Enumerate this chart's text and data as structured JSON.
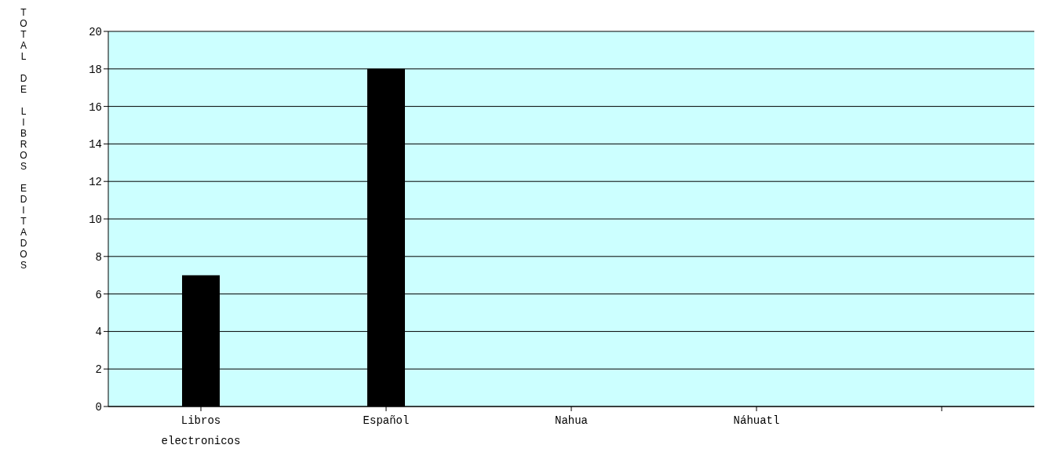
{
  "chart_data": {
    "type": "bar",
    "ylabel": "TOTAL DE LIBROS EDITADOS",
    "categories": [
      "Libros electronicos",
      "Español",
      "Nahua",
      "Náhuatl",
      null
    ],
    "values": [
      7,
      18,
      0,
      0,
      null
    ],
    "color": "#000000",
    "ylim": [
      0,
      20
    ],
    "yticks": [
      0,
      2,
      4,
      6,
      8,
      10,
      12,
      14,
      16,
      18,
      20
    ],
    "grid": "y"
  }
}
